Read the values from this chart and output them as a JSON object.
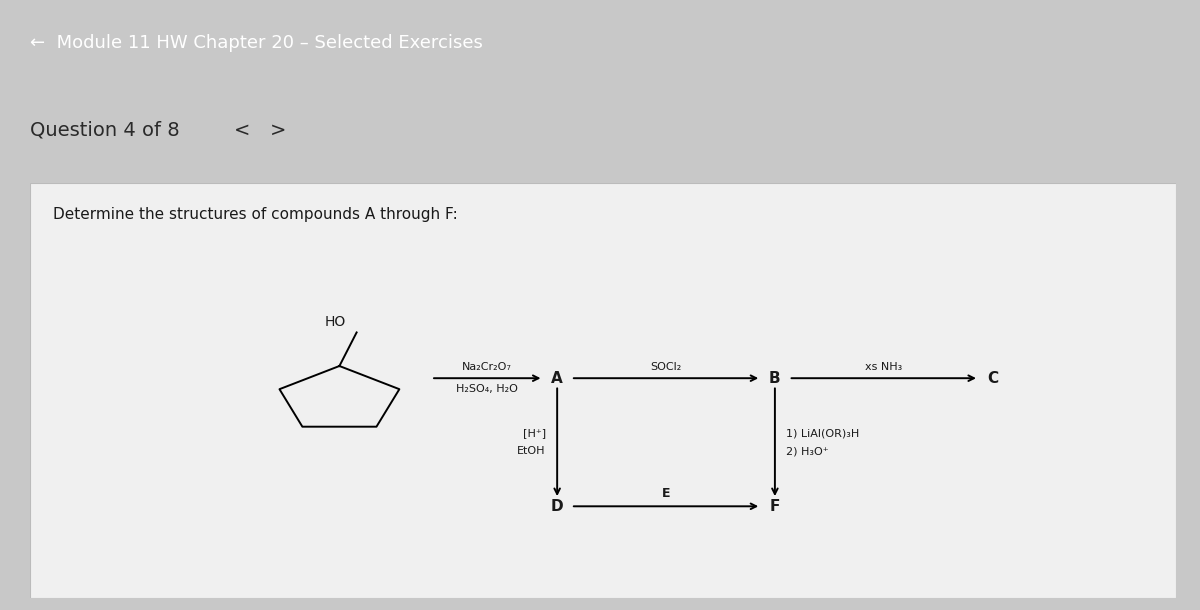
{
  "header_bg": "#2e2e2e",
  "header_text": "←  Module 11 HW Chapter 20 – Selected Exercises",
  "header_text_color": "#ffffff",
  "header_fontsize": 13,
  "outer_bg": "#c8c8c8",
  "inner_bg": "#f0f0f0",
  "question_text": "Determine the structures of compounds A through F:",
  "question_fontsize": 11,
  "diagram_text_color": "#1a1a1a",
  "reagent1_line1": "Na₂Cr₂O₇",
  "reagent1_line2": "H₂SO₄, H₂O",
  "reagent2": "SOCl₂",
  "reagent3_line1": "xs NH₃",
  "reagent4_line1": "[H⁺]",
  "reagent4_line2": "EtOH",
  "reagent5_line1": "1) LiAl(OR)₃H",
  "reagent5_line2": "2) H₃O⁺",
  "label_A": "A",
  "label_B": "B",
  "label_C": "C",
  "label_D": "D",
  "label_E": "E",
  "label_F": "F",
  "label_HO": "HO"
}
